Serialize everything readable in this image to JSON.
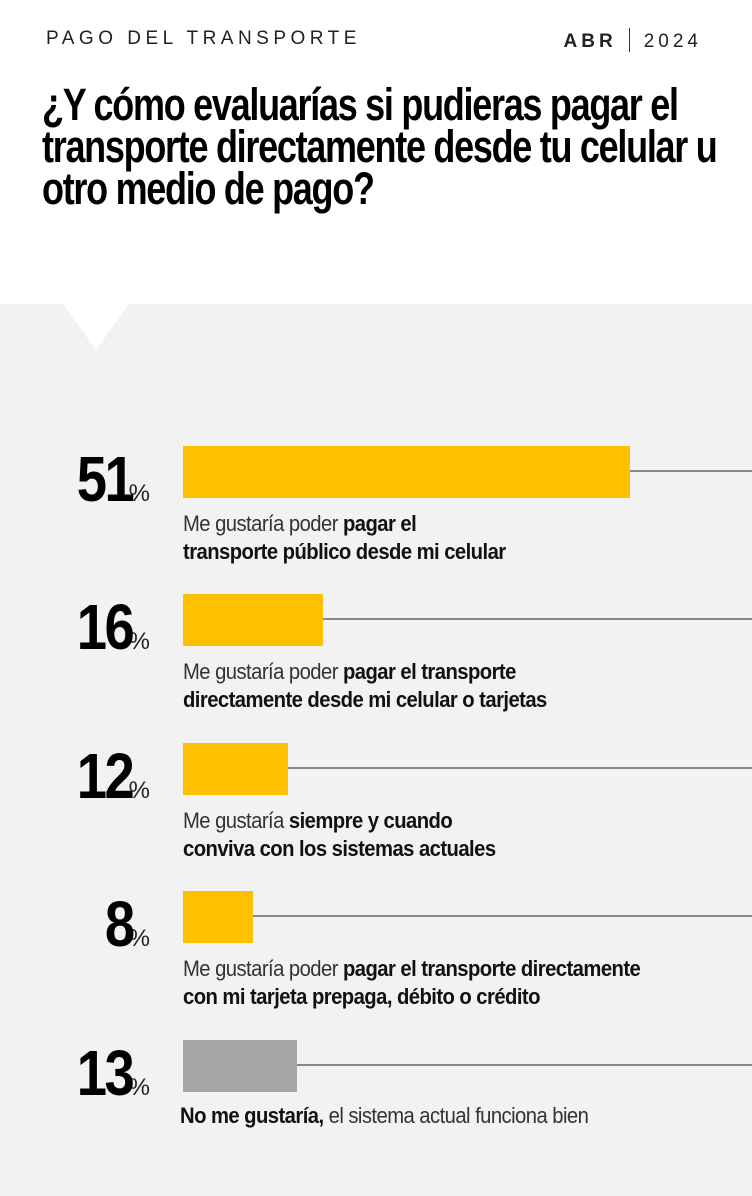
{
  "header": {
    "kicker": "PAGO DEL TRANSPORTE",
    "month": "ABR",
    "year": "2024"
  },
  "title": "¿Y cómo evaluarías si pudieras pagar el transporte directamente desde tu celular u otro medio de pago?",
  "colors": {
    "accent": "#ffc000",
    "neutral": "#a6a6a6",
    "panel": "#f2f2f2"
  },
  "chart_data": {
    "type": "bar",
    "orientation": "horizontal",
    "unit": "%",
    "title": "¿Y cómo evaluarías si pudieras pagar el transporte directamente desde tu celular u otro medio de pago?",
    "xlim": [
      0,
      80
    ],
    "items": [
      {
        "value": 51,
        "percent_sign": "%",
        "color": "#ffc000",
        "label": [
          {
            "t": "Me gustaría poder ",
            "b": false
          },
          {
            "t": "pagar el",
            "b": true
          },
          {
            "t": "\n",
            "b": false
          },
          {
            "t": "transporte público desde mi celular",
            "b": true
          }
        ]
      },
      {
        "value": 16,
        "percent_sign": "%",
        "color": "#ffc000",
        "label": [
          {
            "t": "Me gustaría poder ",
            "b": false
          },
          {
            "t": "pagar el transporte",
            "b": true
          },
          {
            "t": "\n",
            "b": false
          },
          {
            "t": "directamente desde mi celular o tarjetas",
            "b": true
          }
        ]
      },
      {
        "value": 12,
        "percent_sign": "%",
        "color": "#ffc000",
        "label": [
          {
            "t": "Me gustaría ",
            "b": false
          },
          {
            "t": "siempre y cuando",
            "b": true
          },
          {
            "t": "\n",
            "b": false
          },
          {
            "t": "conviva con los sistemas actuales",
            "b": true
          }
        ]
      },
      {
        "value": 8,
        "percent_sign": "%",
        "color": "#ffc000",
        "label": [
          {
            "t": "Me gustaría poder ",
            "b": false
          },
          {
            "t": "pagar el transporte directamente",
            "b": true
          },
          {
            "t": "\n",
            "b": false
          },
          {
            "t": "con mi tarjeta prepaga, débito o crédito",
            "b": true
          }
        ]
      },
      {
        "value": 13,
        "percent_sign": "%",
        "color": "#a6a6a6",
        "label": [
          {
            "t": "No me gustaría,",
            "b": true
          },
          {
            "t": " el sistema actual funciona bien",
            "b": false
          }
        ]
      }
    ]
  }
}
